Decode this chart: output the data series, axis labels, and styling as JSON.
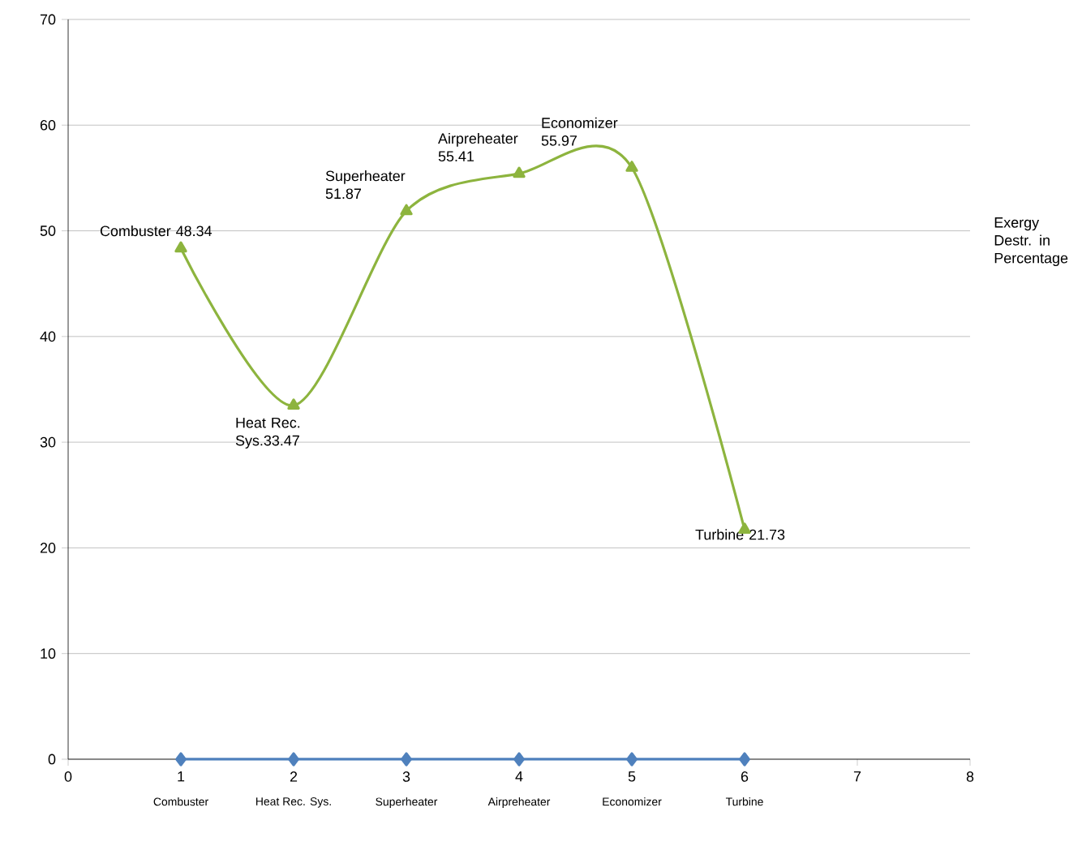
{
  "chart_data": {
    "type": "line",
    "ylabel": "Exergy Destr. in Percentage",
    "xlim": [
      0,
      8
    ],
    "xticks": [
      0,
      1,
      2,
      3,
      4,
      5,
      6,
      7,
      8
    ],
    "ylim": [
      0,
      70
    ],
    "yticks": [
      0,
      10,
      20,
      30,
      40,
      50,
      60,
      70
    ],
    "grid": "y",
    "series": [
      {
        "color": "#4f81bd",
        "marker": "diamond",
        "x": [
          1,
          2,
          3,
          4,
          5,
          6
        ],
        "values": [
          0,
          0,
          0,
          0,
          0,
          0
        ]
      },
      {
        "color": "#8db43e",
        "marker": "triangle",
        "x": [
          1,
          2,
          3,
          4,
          5,
          6
        ],
        "values": [
          48.34,
          33.47,
          51.87,
          55.41,
          55.97,
          21.73
        ],
        "value_labels": [
          "Combuster 48.34",
          "Heat Rec. Sys.33.47",
          "Superheater 51.87",
          "Airpreheater 55.41",
          "Economizer 55.97",
          "Turbine 21.73"
        ]
      }
    ],
    "annotations": [
      "Combuster",
      "Heat Rec. Sys.",
      "Superheater",
      "Airpreheater",
      "Economizer",
      "Turbine"
    ]
  }
}
